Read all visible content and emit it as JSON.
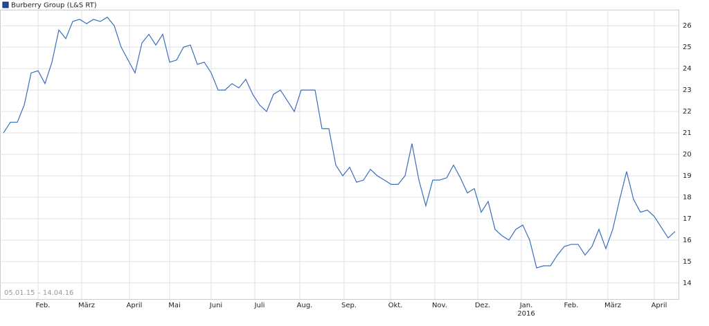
{
  "chart_data": {
    "type": "line",
    "title": "Burberry Group (L&S RT)",
    "date_range": "05.01.15 – 14.04.16",
    "series": [
      {
        "name": "Burberry Group (L&S RT)",
        "color": "#3a6dbd",
        "values": [
          21.0,
          21.5,
          21.5,
          22.3,
          23.8,
          23.9,
          23.3,
          24.3,
          25.8,
          25.4,
          26.2,
          26.3,
          26.1,
          26.3,
          26.2,
          26.4,
          26.0,
          25.0,
          24.4,
          23.8,
          25.2,
          25.6,
          25.1,
          25.6,
          24.3,
          24.4,
          25.0,
          25.1,
          24.2,
          24.3,
          23.8,
          23.0,
          23.0,
          23.3,
          23.1,
          23.5,
          22.8,
          22.3,
          22.0,
          22.8,
          23.0,
          22.5,
          22.0,
          23.0,
          23.0,
          23.0,
          21.2,
          21.2,
          19.5,
          19.0,
          19.4,
          18.7,
          18.8,
          19.3,
          19.0,
          18.8,
          18.6,
          18.6,
          19.0,
          20.5,
          18.8,
          17.6,
          18.8,
          18.8,
          18.9,
          19.5,
          18.9,
          18.2,
          18.4,
          17.3,
          17.8,
          16.5,
          16.2,
          16.0,
          16.5,
          16.7,
          16.0,
          14.7,
          14.8,
          14.8,
          15.3,
          15.7,
          15.8,
          15.8,
          15.3,
          15.7,
          16.5,
          15.6,
          16.5,
          17.9,
          19.2,
          17.9,
          17.3,
          17.4,
          17.1,
          16.6,
          16.1,
          16.4
        ]
      }
    ],
    "xlim": [
      0,
      97.5
    ],
    "xticks": [
      {
        "value": 5,
        "label": "Feb."
      },
      {
        "value": 11.3,
        "label": "März"
      },
      {
        "value": 18.2,
        "label": "April"
      },
      {
        "value": 24,
        "label": "Mai"
      },
      {
        "value": 30,
        "label": "Juni"
      },
      {
        "value": 36.3,
        "label": "Juli"
      },
      {
        "value": 42.8,
        "label": "Aug."
      },
      {
        "value": 49.2,
        "label": "Sep."
      },
      {
        "value": 55.9,
        "label": "Okt."
      },
      {
        "value": 62.3,
        "label": "Nov."
      },
      {
        "value": 68.5,
        "label": "Dez."
      },
      {
        "value": 74.8,
        "label": "Jan."
      },
      {
        "value": 81.3,
        "label": "Feb."
      },
      {
        "value": 87.3,
        "label": "März"
      },
      {
        "value": 94,
        "label": "April"
      }
    ],
    "year_label": "2016",
    "ylim": [
      13.25,
      26.75
    ],
    "yticks": [
      14,
      15,
      16,
      17,
      18,
      19,
      20,
      21,
      22,
      23,
      24,
      25,
      26
    ],
    "grid": true
  }
}
